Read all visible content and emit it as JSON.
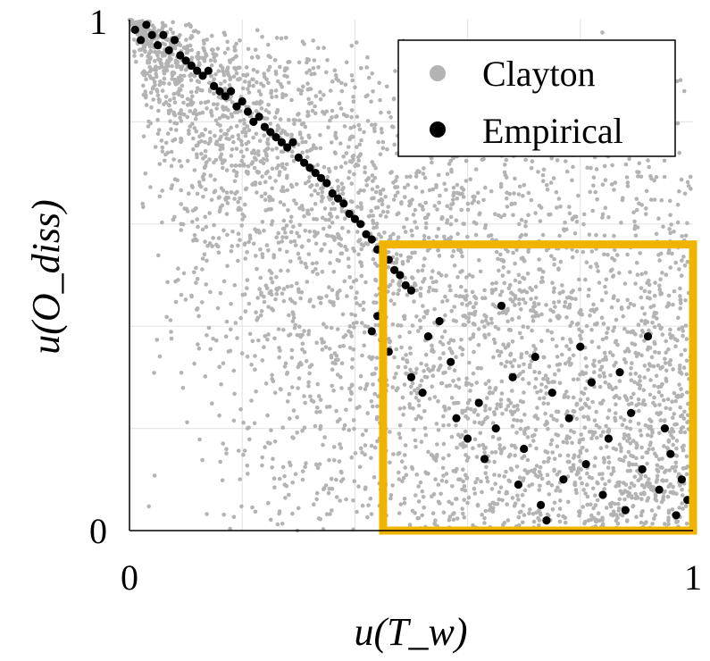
{
  "chart_data": {
    "type": "scatter",
    "title": "",
    "xlabel": "u(T_w)",
    "ylabel": "u(O_diss)",
    "xlim": [
      0,
      1
    ],
    "ylim": [
      0,
      1
    ],
    "x_tick_labels": [
      "0",
      "1"
    ],
    "y_tick_labels": [
      "0",
      "1"
    ],
    "grid": true,
    "legend_position": "top-right",
    "series": [
      {
        "name": "Clayton",
        "color": "#b3b3b3",
        "description_points": "approx. 5000 samples from a Clayton copula rotated to negative dependence; dense along the anti-diagonal, scattered over the whole unit square"
      },
      {
        "name": "Empirical",
        "color": "#000000",
        "points": [
          [
            0.01,
            0.98
          ],
          [
            0.02,
            0.96
          ],
          [
            0.03,
            0.99
          ],
          [
            0.04,
            0.97
          ],
          [
            0.05,
            0.95
          ],
          [
            0.06,
            0.97
          ],
          [
            0.07,
            0.94
          ],
          [
            0.08,
            0.96
          ],
          [
            0.09,
            0.93
          ],
          [
            0.1,
            0.92
          ],
          [
            0.11,
            0.91
          ],
          [
            0.12,
            0.9
          ],
          [
            0.13,
            0.89
          ],
          [
            0.14,
            0.9
          ],
          [
            0.15,
            0.87
          ],
          [
            0.16,
            0.86
          ],
          [
            0.17,
            0.85
          ],
          [
            0.18,
            0.86
          ],
          [
            0.19,
            0.83
          ],
          [
            0.2,
            0.84
          ],
          [
            0.21,
            0.82
          ],
          [
            0.22,
            0.8
          ],
          [
            0.23,
            0.81
          ],
          [
            0.24,
            0.79
          ],
          [
            0.25,
            0.78
          ],
          [
            0.26,
            0.77
          ],
          [
            0.27,
            0.76
          ],
          [
            0.28,
            0.75
          ],
          [
            0.29,
            0.76
          ],
          [
            0.3,
            0.73
          ],
          [
            0.31,
            0.72
          ],
          [
            0.32,
            0.71
          ],
          [
            0.33,
            0.7
          ],
          [
            0.34,
            0.69
          ],
          [
            0.35,
            0.68
          ],
          [
            0.36,
            0.66
          ],
          [
            0.37,
            0.65
          ],
          [
            0.38,
            0.64
          ],
          [
            0.39,
            0.62
          ],
          [
            0.4,
            0.61
          ],
          [
            0.41,
            0.6
          ],
          [
            0.42,
            0.58
          ],
          [
            0.43,
            0.57
          ],
          [
            0.44,
            0.55
          ],
          [
            0.45,
            0.54
          ],
          [
            0.46,
            0.53
          ],
          [
            0.47,
            0.51
          ],
          [
            0.48,
            0.5
          ],
          [
            0.49,
            0.48
          ],
          [
            0.5,
            0.47
          ],
          [
            0.43,
            0.39
          ],
          [
            0.44,
            0.42
          ],
          [
            0.45,
            0.37
          ],
          [
            0.46,
            0.35
          ],
          [
            0.5,
            0.3
          ],
          [
            0.52,
            0.27
          ],
          [
            0.53,
            0.38
          ],
          [
            0.55,
            0.41
          ],
          [
            0.57,
            0.33
          ],
          [
            0.58,
            0.22
          ],
          [
            0.6,
            0.18
          ],
          [
            0.62,
            0.25
          ],
          [
            0.63,
            0.14
          ],
          [
            0.65,
            0.2
          ],
          [
            0.66,
            0.44
          ],
          [
            0.68,
            0.3
          ],
          [
            0.69,
            0.09
          ],
          [
            0.7,
            0.16
          ],
          [
            0.72,
            0.34
          ],
          [
            0.73,
            0.05
          ],
          [
            0.74,
            0.02
          ],
          [
            0.75,
            0.27
          ],
          [
            0.77,
            0.1
          ],
          [
            0.78,
            0.22
          ],
          [
            0.8,
            0.36
          ],
          [
            0.81,
            0.13
          ],
          [
            0.82,
            0.29
          ],
          [
            0.84,
            0.07
          ],
          [
            0.85,
            0.18
          ],
          [
            0.87,
            0.31
          ],
          [
            0.88,
            0.04
          ],
          [
            0.89,
            0.23
          ],
          [
            0.91,
            0.12
          ],
          [
            0.92,
            0.38
          ],
          [
            0.94,
            0.08
          ],
          [
            0.95,
            0.2
          ],
          [
            0.96,
            0.15
          ],
          [
            0.97,
            0.03
          ],
          [
            0.98,
            0.1
          ],
          [
            0.99,
            0.06
          ]
        ]
      }
    ],
    "annotation_box": {
      "x_range": [
        0.45,
        1.0
      ],
      "y_range": [
        0.0,
        0.56
      ],
      "color": "#f0b400"
    }
  }
}
